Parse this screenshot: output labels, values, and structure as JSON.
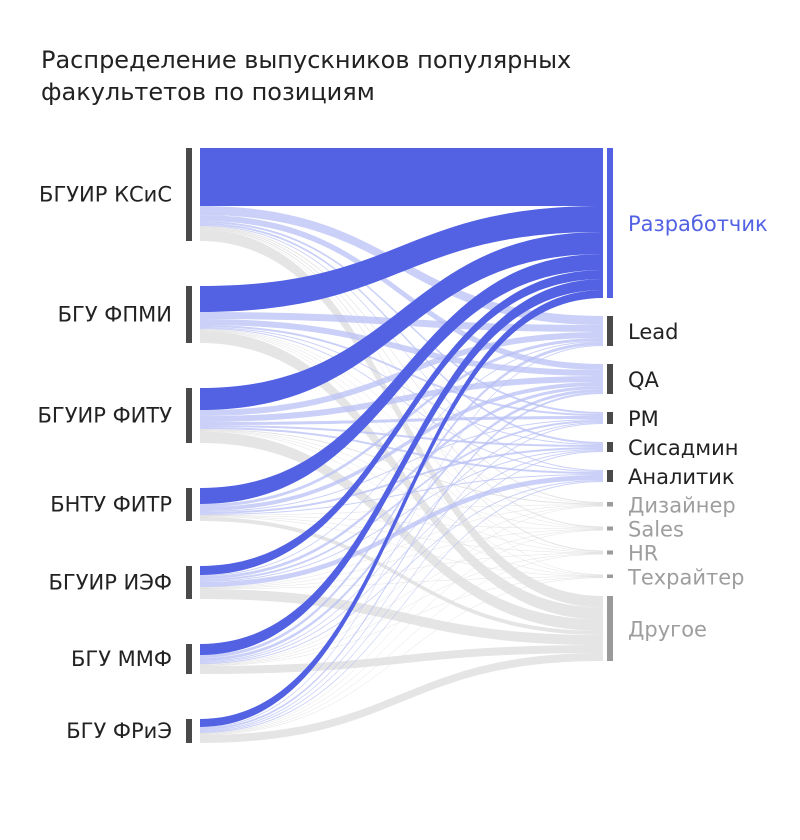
{
  "chart_data": {
    "type": "sankey",
    "title": "Распределение выпускников популярных факультетов по позициям",
    "sources": [
      {
        "name": "БГУИР КСиС",
        "total": 93
      },
      {
        "name": "БГУ ФПМИ",
        "total": 57
      },
      {
        "name": "БГУИР ФИТУ",
        "total": 55
      },
      {
        "name": "БНТУ ФИТР",
        "total": 33
      },
      {
        "name": "БГУИР ИЭФ",
        "total": 33
      },
      {
        "name": "БГУ ММФ",
        "total": 30
      },
      {
        "name": "БГУ ФРиЭ",
        "total": 24
      }
    ],
    "targets": [
      {
        "name": "Разработчик",
        "highlight": true
      },
      {
        "name": "Lead",
        "highlight": false
      },
      {
        "name": "QA",
        "highlight": false
      },
      {
        "name": "PM",
        "highlight": false
      },
      {
        "name": "Сисадмин",
        "highlight": false
      },
      {
        "name": "Аналитик",
        "highlight": false
      },
      {
        "name": "Дизайнер",
        "highlight": false,
        "faded": true
      },
      {
        "name": "Sales",
        "highlight": false,
        "faded": true
      },
      {
        "name": "HR",
        "highlight": false,
        "faded": true
      },
      {
        "name": "Техрайтер",
        "highlight": false,
        "faded": true
      },
      {
        "name": "Другое",
        "highlight": false,
        "faded": true
      }
    ],
    "flows": [
      [
        58,
        9,
        6,
        2,
        2,
        1,
        1,
        1,
        1,
        0.5,
        11.5
      ],
      [
        26,
        7,
        6,
        2,
        1,
        1,
        0.5,
        0.5,
        0.5,
        0.5,
        12
      ],
      [
        22,
        6,
        6,
        3,
        2,
        2,
        1,
        0.5,
        0.5,
        0.5,
        11.5
      ],
      [
        16,
        3,
        4,
        1,
        2,
        1,
        0.5,
        0.5,
        0.5,
        0.5,
        4
      ],
      [
        9,
        1,
        3,
        2,
        1,
        5,
        0.5,
        0.5,
        0.5,
        0.5,
        10
      ],
      [
        11,
        3,
        3,
        1,
        1,
        1,
        0.5,
        0.5,
        0.5,
        0.5,
        8
      ],
      [
        8,
        1,
        2,
        1,
        1,
        1,
        0.5,
        0.5,
        0.5,
        0.5,
        8
      ]
    ],
    "colors": {
      "highlight": "#5262e3",
      "highlight_light": "#b8c0f4",
      "other": "#e0e0e0",
      "node": "#4a4a4a",
      "node_faded": "#9a9a9a",
      "label": "#222222",
      "label_faded": "#9e9e9e"
    }
  }
}
